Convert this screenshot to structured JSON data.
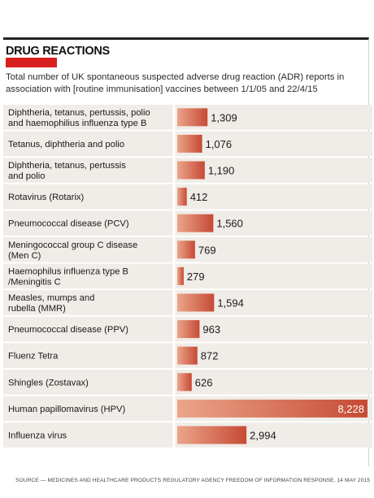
{
  "header": {
    "title": "DRUG REACTIONS",
    "subtitle": "Total number of UK spontaneous suspected adverse drug reaction (ADR) reports in association with [routine immunisation] vaccines between 1/1/05 and 22/4/15",
    "source": "SOURCE — MEDICINES AND HEALTHCARE PRODUCTS REGULATORY AGENCY FREEDOM OF INFORMATION RESPONSE, 14 MAY 2015"
  },
  "colors": {
    "accent": "#d92020",
    "bar_light": "#eba58a",
    "bar_dark": "#c64a35",
    "band": "#f0ece7"
  },
  "chart_data": {
    "type": "bar",
    "orientation": "horizontal",
    "title": "DRUG REACTIONS",
    "categories": [
      [
        "Diphtheria, tetanus, pertussis, polio",
        "and haemophilius influenza type B"
      ],
      [
        "Tetanus, diphtheria and polio"
      ],
      [
        "Diphtheria, tetanus, pertussis",
        "and polio"
      ],
      [
        "Rotavirus (Rotarix)"
      ],
      [
        "Pneumococcal disease (PCV)"
      ],
      [
        "Meningococcal group C disease",
        "(Men C)"
      ],
      [
        "Haemophilus influenza type B",
        "/Meningitis C"
      ],
      [
        "Measles, mumps and",
        "rubella (MMR)"
      ],
      [
        "Pneumococcal disease (PPV)"
      ],
      [
        "Fluenz Tetra"
      ],
      [
        "Shingles (Zostavax)"
      ],
      [
        "Human papillomavirus (HPV)"
      ],
      [
        "Influenza virus"
      ]
    ],
    "values": [
      1309,
      1076,
      1190,
      412,
      1560,
      769,
      279,
      1594,
      963,
      872,
      626,
      8228,
      2994
    ],
    "value_labels": [
      "1,309",
      "1,076",
      "1,190",
      "412",
      "1,560",
      "769",
      "279",
      "1,594",
      "963",
      "872",
      "626",
      "8,228",
      "2,994"
    ],
    "xlim": [
      0,
      8228
    ],
    "grid": false,
    "legend": "none"
  }
}
